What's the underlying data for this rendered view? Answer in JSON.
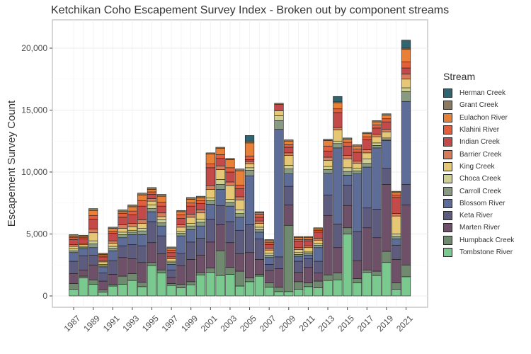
{
  "chart_data": {
    "type": "bar",
    "stacked": true,
    "title": "Ketchikan Coho Escapement Survey Index - Broken out by component streams",
    "xlabel": "",
    "ylabel": "Escapement Survey Count",
    "ylim": [
      0,
      22000
    ],
    "yticks": [
      0,
      5000,
      10000,
      15000,
      20000
    ],
    "ytick_labels": [
      "0",
      "5,000",
      "10,000",
      "15,000",
      "20,000"
    ],
    "xtick_labels": [
      "1987",
      "1989",
      "1991",
      "1993",
      "1995",
      "1997",
      "1999",
      "2001",
      "2003",
      "2005",
      "2007",
      "2009",
      "2011",
      "2013",
      "2015",
      "2017",
      "2019",
      "2021"
    ],
    "grid": true,
    "legend_title": "Stream",
    "legend_position": "right",
    "categories": [
      "1987",
      "1988",
      "1989",
      "1990",
      "1991",
      "1992",
      "1993",
      "1994",
      "1995",
      "1996",
      "1997",
      "1998",
      "1999",
      "2000",
      "2001",
      "2002",
      "2003",
      "2004",
      "2005",
      "2006",
      "2007",
      "2008",
      "2009",
      "2010",
      "2011",
      "2012",
      "2013",
      "2014",
      "2015",
      "2016",
      "2017",
      "2018",
      "2019",
      "2020",
      "2021"
    ],
    "series": [
      {
        "name": "Tombstone River",
        "color": "#7ac98e",
        "values": [
          550,
          1450,
          950,
          300,
          800,
          950,
          1250,
          750,
          2450,
          1850,
          850,
          650,
          900,
          1700,
          1900,
          1650,
          1750,
          800,
          1150,
          1600,
          700,
          350,
          350,
          550,
          750,
          650,
          1250,
          1300,
          5000,
          1050,
          1900,
          1650,
          2700,
          550,
          1550
        ]
      },
      {
        "name": "Humpback Creek",
        "color": "#6f8a6e",
        "values": [
          450,
          150,
          350,
          200,
          150,
          650,
          550,
          350,
          250,
          250,
          150,
          300,
          250,
          200,
          350,
          2000,
          550,
          1200,
          300,
          150,
          350,
          350,
          5350,
          600,
          300,
          550,
          450,
          550,
          500,
          350,
          200,
          350,
          900,
          500,
          950
        ]
      },
      {
        "name": "Marten River",
        "color": "#6e5068",
        "values": [
          800,
          500,
          1200,
          700,
          800,
          1500,
          1200,
          1600,
          1600,
          1300,
          500,
          1500,
          1800,
          1400,
          2100,
          2100,
          2000,
          1400,
          2050,
          1200,
          1000,
          1500,
          1650,
          750,
          1250,
          650,
          4800,
          2050,
          1800,
          1450,
          3400,
          2700,
          5400,
          1900,
          4850
        ]
      },
      {
        "name": "Keta River",
        "color": "#5d5c7e",
        "values": [
          1000,
          1150,
          800,
          650,
          1100,
          950,
          1150,
          1350,
          1700,
          1450,
          600,
          1000,
          1400,
          1350,
          1850,
          1550,
          1700,
          1900,
          2250,
          1650,
          500,
          950,
          1500,
          900,
          700,
          950,
          1650,
          1900,
          1650,
          2350,
          1600,
          2300,
          1300,
          1150,
          1650
        ]
      },
      {
        "name": "Blossom River",
        "color": "#5e6d97",
        "values": [
          700,
          550,
          600,
          500,
          800,
          650,
          800,
          900,
          800,
          800,
          450,
          1400,
          1000,
          1000,
          1200,
          1300,
          1250,
          1050,
          3950,
          550,
          550,
          10300,
          1000,
          400,
          300,
          1100,
          1750,
          6150,
          800,
          4650,
          3300,
          4950,
          2250,
          500,
          6700
        ]
      },
      {
        "name": "Carroll Creek",
        "color": "#889a82",
        "values": [
          150,
          100,
          300,
          100,
          200,
          250,
          200,
          300,
          250,
          250,
          150,
          200,
          300,
          300,
          300,
          400,
          300,
          300,
          450,
          200,
          200,
          700,
          400,
          150,
          150,
          200,
          300,
          350,
          300,
          250,
          300,
          200,
          100,
          200,
          800
        ]
      },
      {
        "name": "Choca Creek",
        "color": "#cfd08f",
        "values": [
          150,
          100,
          250,
          100,
          150,
          200,
          150,
          200,
          300,
          250,
          100,
          150,
          200,
          250,
          200,
          400,
          250,
          300,
          200,
          200,
          150,
          400,
          300,
          150,
          100,
          150,
          250,
          200,
          300,
          200,
          350,
          200,
          100,
          200,
          300
        ]
      },
      {
        "name": "King Creek",
        "color": "#e5c775",
        "values": [
          200,
          150,
          650,
          200,
          250,
          300,
          300,
          400,
          300,
          250,
          200,
          350,
          500,
          500,
          700,
          800,
          1100,
          800,
          300,
          300,
          250,
          400,
          800,
          250,
          350,
          250,
          500,
          900,
          700,
          400,
          500,
          500,
          500,
          1450,
          700
        ]
      },
      {
        "name": "Barrier Creek",
        "color": "#d77b5b",
        "values": [
          150,
          100,
          300,
          100,
          200,
          300,
          250,
          300,
          200,
          300,
          150,
          200,
          250,
          250,
          300,
          300,
          300,
          250,
          200,
          200,
          150,
          0,
          200,
          150,
          150,
          150,
          250,
          200,
          300,
          200,
          250,
          200,
          200,
          200,
          400
        ]
      },
      {
        "name": "Indian Creek",
        "color": "#c44a4a",
        "values": [
          400,
          350,
          800,
          300,
          600,
          600,
          700,
          1100,
          350,
          550,
          350,
          500,
          650,
          500,
          1450,
          600,
          800,
          650,
          150,
          300,
          300,
          500,
          450,
          500,
          400,
          500,
          500,
          1200,
          750,
          700,
          800,
          500,
          600,
          1300,
          500
        ]
      },
      {
        "name": "Klahini River",
        "color": "#e25f3e",
        "values": [
          150,
          100,
          300,
          100,
          150,
          300,
          300,
          450,
          200,
          300,
          200,
          300,
          250,
          250,
          300,
          300,
          350,
          300,
          300,
          250,
          150,
          0,
          200,
          150,
          100,
          150,
          400,
          300,
          300,
          250,
          250,
          250,
          250,
          200,
          500
        ]
      },
      {
        "name": "Eulachon River",
        "color": "#e98038",
        "values": [
          100,
          100,
          400,
          100,
          250,
          150,
          350,
          450,
          200,
          500,
          150,
          250,
          300,
          200,
          800,
          500,
          650,
          1150,
          1050,
          100,
          150,
          0,
          300,
          150,
          150,
          100,
          450,
          500,
          250,
          250,
          250,
          250,
          300,
          200,
          1000
        ]
      },
      {
        "name": "Grant Creek",
        "color": "#8c7a5e",
        "values": [
          150,
          100,
          150,
          100,
          100,
          150,
          150,
          150,
          150,
          150,
          100,
          100,
          150,
          150,
          100,
          100,
          100,
          150,
          150,
          100,
          100,
          100,
          100,
          100,
          100,
          100,
          100,
          100,
          100,
          100,
          100,
          100,
          100,
          100,
          100
        ]
      },
      {
        "name": "Herman Creek",
        "color": "#2f6470",
        "values": [
          0,
          0,
          0,
          0,
          0,
          0,
          0,
          0,
          0,
          0,
          0,
          0,
          0,
          0,
          0,
          0,
          0,
          0,
          450,
          0,
          0,
          0,
          0,
          0,
          0,
          0,
          0,
          400,
          0,
          0,
          0,
          0,
          0,
          0,
          650
        ]
      }
    ]
  }
}
